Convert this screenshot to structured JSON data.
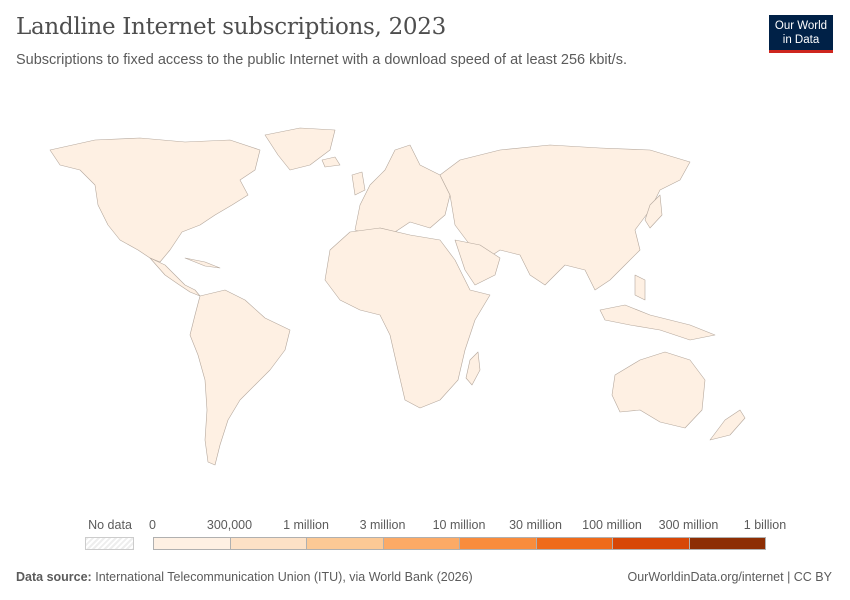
{
  "header": {
    "title": "Landline Internet subscriptions, 2023",
    "subtitle": "Subscriptions to fixed access to the public Internet with a download speed of at least 256 kbit/s.",
    "logo_line1": "Our World",
    "logo_line2": "in Data"
  },
  "map": {
    "year": "2023",
    "country_fill": "#fef0e3",
    "border_color": "#b5a89d"
  },
  "legend": {
    "no_data_label": "No data",
    "ticks": [
      "0",
      "300,000",
      "1 million",
      "3 million",
      "10 million",
      "30 million",
      "100 million",
      "300 million",
      "1 billion"
    ],
    "bin_colors": [
      "#fef0e3",
      "#fde1c6",
      "#fcc995",
      "#fcaa66",
      "#f98c3c",
      "#ef6b1b",
      "#d74707",
      "#8d2e04"
    ]
  },
  "footer": {
    "source_label": "Data source:",
    "source_text": "International Telecommunication Union (ITU), via World Bank (2026)",
    "url_text": "OurWorldinData.org/internet | CC BY"
  }
}
